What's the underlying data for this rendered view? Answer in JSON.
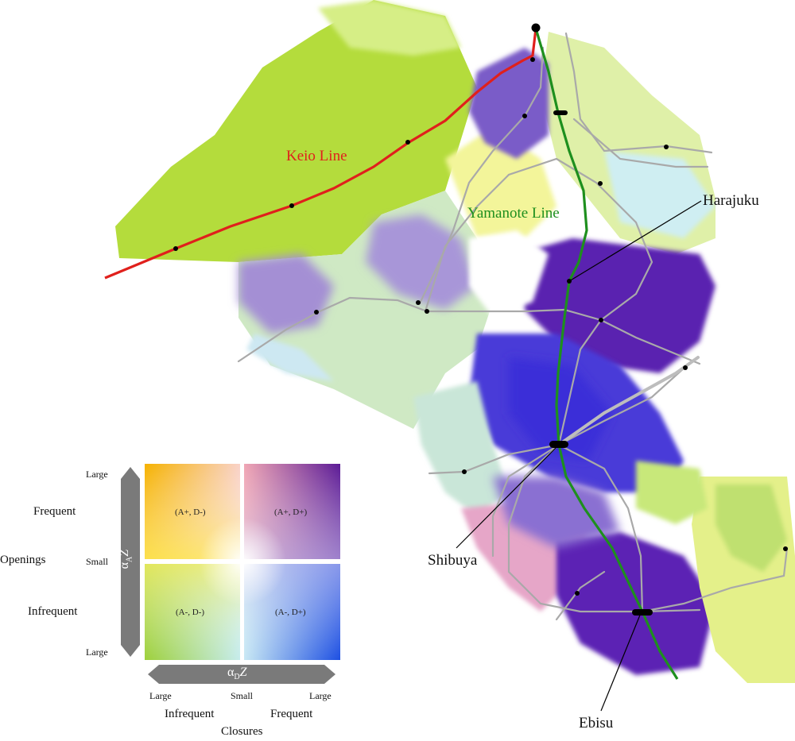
{
  "map": {
    "lines": {
      "keio": {
        "label": "Keio Line",
        "color": "#e0201c"
      },
      "yamanote": {
        "label": "Yamanote Line",
        "color": "#1e8f1e"
      }
    },
    "stations": {
      "harajuku": "Harajuku",
      "shibuya": "Shibuya",
      "ebisu": "Ebisu"
    }
  },
  "legend": {
    "quadrants": {
      "tl": "(A+, D-)",
      "tr": "(A+, D+)",
      "bl": "(A-, D-)",
      "br": "(A-, D+)"
    },
    "y_axis": {
      "symbol": "α",
      "subscript": "A",
      "var": "Z",
      "top": "Large",
      "middle": "Small",
      "bottom": "Large",
      "frequent": "Frequent",
      "infrequent": "Infrequent",
      "title": "Openings"
    },
    "x_axis": {
      "symbol": "α",
      "subscript": "D",
      "var": "Z",
      "left": "Large",
      "middle": "Small",
      "right": "Large",
      "infrequent": "Infrequent",
      "frequent": "Frequent",
      "title": "Closures"
    },
    "colors": {
      "top_left": "#f5b800",
      "top_right": "#5a1a9a",
      "bottom_left": "#9ed23a",
      "bottom_right": "#1e4fe0",
      "center": "#ffffff"
    }
  }
}
